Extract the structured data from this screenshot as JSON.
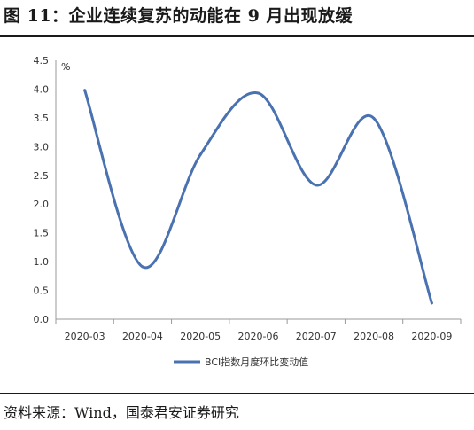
{
  "header": {
    "title": "图 11：企业连续复苏的动能在 9 月出现放缓"
  },
  "footer": {
    "source": "资料来源：Wind，国泰君安证券研究"
  },
  "chart_data": {
    "type": "line",
    "title": "",
    "xlabel": "",
    "ylabel": "",
    "unit_label": "%",
    "categories": [
      "2020-03",
      "2020-04",
      "2020-05",
      "2020-06",
      "2020-07",
      "2020-08",
      "2020-09"
    ],
    "ylim": [
      0,
      4.5
    ],
    "yticks": [
      "0.0",
      "0.5",
      "1.0",
      "1.5",
      "2.0",
      "2.5",
      "3.0",
      "3.5",
      "4.0",
      "4.5"
    ],
    "grid": false,
    "legend": "bottom",
    "series": [
      {
        "name": "BCI指数月度环比变动值",
        "color": "#4a72b0",
        "values": [
          3.98,
          0.91,
          2.86,
          3.93,
          2.33,
          3.49,
          0.28
        ]
      }
    ]
  }
}
